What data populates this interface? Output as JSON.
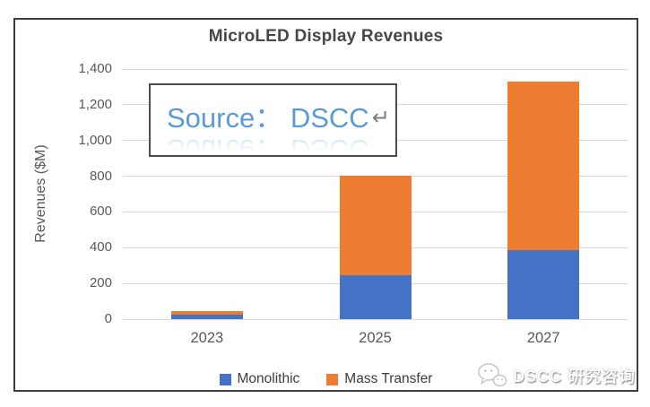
{
  "chart_data": {
    "type": "bar",
    "stacked": true,
    "title": "MicroLED Display Revenues",
    "ylabel": "Revenues ($M)",
    "xlabel": "",
    "categories": [
      "2023",
      "2025",
      "2027"
    ],
    "series": [
      {
        "name": "Monolithic",
        "color": "#4472C4",
        "values": [
          25,
          245,
          385
        ]
      },
      {
        "name": "Mass Transfer",
        "color": "#ED7D31",
        "values": [
          20,
          560,
          945
        ]
      }
    ],
    "ylim": [
      0,
      1400
    ],
    "ytick_step": 200,
    "ytick_labels": [
      "0",
      "200",
      "400",
      "600",
      "800",
      "1,000",
      "1,200",
      "1,400"
    ],
    "grid": true,
    "grid_color": "#d9d9d9",
    "legend_position": "bottom"
  },
  "source_box": {
    "text": "Source： DSCC",
    "return_symbol": "↵"
  },
  "footer_watermark": {
    "icon": "wechat-logo-icon",
    "text": "DSCC 研究咨询"
  },
  "colors": {
    "title_text": "#474747",
    "axis_text": "#595959",
    "frame_border": "#3f3f3f",
    "source_text": "#5b9bd5"
  }
}
